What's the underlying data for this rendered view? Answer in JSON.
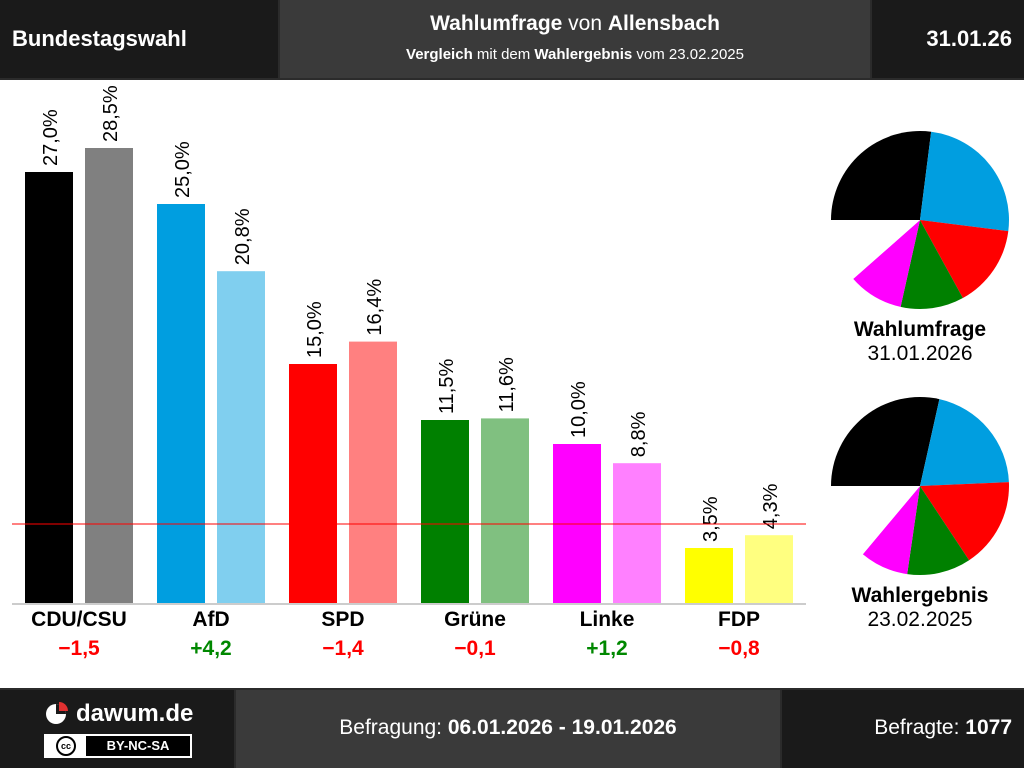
{
  "header": {
    "left": "Bundestagswahl",
    "title_bold1": "Wahlumfrage",
    "title_plain": " von ",
    "title_bold2": "Allensbach",
    "sub_bold1": "Vergleich",
    "sub_plain1": " mit dem ",
    "sub_bold2": "Wahlergebnis",
    "sub_plain2": " vom 23.02.2025",
    "right": "31.01.26"
  },
  "footer": {
    "logo": "dawum.de",
    "license_cc": "cc",
    "license": "BY-NC-SA",
    "survey_label": "Befragung: ",
    "survey_range": "06.01.2026 - 19.01.2026",
    "respondents_label": "Befragte: ",
    "respondents": "1077"
  },
  "colors": {
    "positive": "#008800",
    "negative": "#ff0000",
    "threshold": "#ff0000"
  },
  "chart_data": [
    {
      "type": "bar",
      "categories": [
        "CDU/CSU",
        "AfD",
        "SPD",
        "Grüne",
        "Linke",
        "FDP"
      ],
      "series": [
        {
          "name": "Wahlumfrage",
          "values": [
            27.0,
            25.0,
            15.0,
            11.5,
            10.0,
            3.5
          ],
          "labels": [
            "27,0%",
            "25,0%",
            "15,0%",
            "11,5%",
            "10,0%",
            "3,5%"
          ],
          "colors": [
            "#000000",
            "#009ee0",
            "#ff0000",
            "#008000",
            "#ff00ff",
            "#ffff00"
          ]
        },
        {
          "name": "Wahlergebnis",
          "values": [
            28.5,
            20.8,
            16.4,
            11.6,
            8.8,
            4.3
          ],
          "labels": [
            "28,5%",
            "20,8%",
            "16,4%",
            "11,6%",
            "8,8%",
            "4,3%"
          ],
          "colors": [
            "#808080",
            "#80cfef",
            "#ff8080",
            "#80c080",
            "#ff80ff",
            "#ffff80"
          ]
        }
      ],
      "changes": [
        "−1,5",
        "+4,2",
        "−1,4",
        "−0,1",
        "+1,2",
        "−0,8"
      ],
      "change_signs": [
        -1,
        1,
        -1,
        -1,
        1,
        -1
      ],
      "threshold": 5,
      "ylim": [
        0,
        30
      ]
    },
    {
      "type": "pie",
      "title": "Wahlumfrage",
      "date": "31.01.2026",
      "values": [
        27.0,
        25.0,
        15.0,
        11.5,
        10.0
      ],
      "colors": [
        "#000000",
        "#009ee0",
        "#ff0000",
        "#008000",
        "#ff00ff"
      ]
    },
    {
      "type": "pie",
      "title": "Wahlergebnis",
      "date": "23.02.2025",
      "values": [
        28.5,
        20.8,
        16.4,
        11.6,
        8.8
      ],
      "colors": [
        "#000000",
        "#009ee0",
        "#ff0000",
        "#008000",
        "#ff00ff"
      ]
    }
  ]
}
